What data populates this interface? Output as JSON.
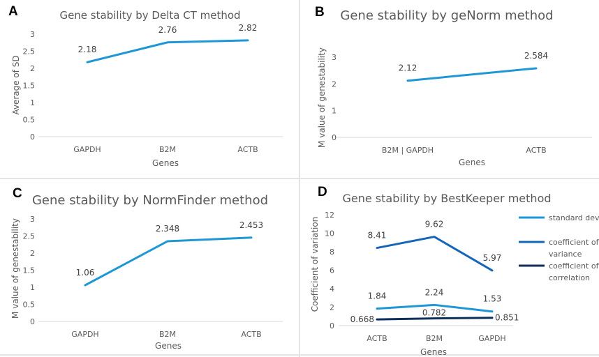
{
  "chart_data": [
    {
      "panel": "A",
      "type": "line",
      "title": "Gene stability by Delta CT method",
      "categories": [
        "GAPDH",
        "B2M",
        "ACTB"
      ],
      "series": [
        {
          "name": "Average of SD",
          "values": [
            2.18,
            2.76,
            2.82
          ],
          "labels": [
            "2.18",
            "2.76",
            "2.82"
          ],
          "color": "#1f97d4"
        }
      ],
      "xlabel": "Genes",
      "ylabel": "Average of SD",
      "ylim": [
        0,
        3
      ],
      "yticks": [
        "0",
        "0.5",
        "1",
        "1.5",
        "2",
        "2.5",
        "3"
      ],
      "ytick_values": [
        0,
        0.5,
        1,
        1.5,
        2,
        2.5,
        3
      ]
    },
    {
      "panel": "B",
      "type": "line",
      "title": "Gene stability by geNorm method",
      "categories": [
        "B2M | GAPDH",
        "ACTB"
      ],
      "series": [
        {
          "name": "M value of genestability",
          "values": [
            2.12,
            2.584
          ],
          "labels": [
            "2.12",
            "2.584"
          ],
          "color": "#1f97d4"
        }
      ],
      "xlabel": "Genes",
      "ylabel": "M value of genestability",
      "ylim": [
        0,
        3
      ],
      "yticks": [
        "0",
        "1",
        "2",
        "3"
      ],
      "ytick_values": [
        0,
        1,
        2,
        3
      ]
    },
    {
      "panel": "C",
      "type": "line",
      "title": "Gene stability by NormFinder method",
      "categories": [
        "GAPDH",
        "B2M",
        "ACTB"
      ],
      "series": [
        {
          "name": "M value of genestability",
          "values": [
            1.06,
            2.348,
            2.453
          ],
          "labels": [
            "1.06",
            "2.348",
            "2.453"
          ],
          "color": "#1f97d4"
        }
      ],
      "xlabel": "Genes",
      "ylabel": "M value of genestability",
      "ylim": [
        0,
        3
      ],
      "yticks": [
        "0",
        "0.5",
        "1",
        "1.5",
        "2",
        "2.5",
        "3"
      ],
      "ytick_values": [
        0,
        0.5,
        1,
        1.5,
        2,
        2.5,
        3
      ]
    },
    {
      "panel": "D",
      "type": "line",
      "title": "Gene stability by BestKeeper method",
      "categories": [
        "ACTB",
        "B2M",
        "GAPDH"
      ],
      "series": [
        {
          "name": "standard deviation",
          "values": [
            1.84,
            2.24,
            1.53
          ],
          "labels": [
            "1.84",
            "2.24",
            "1.53"
          ],
          "color": "#1f97d4"
        },
        {
          "name": "coefficient of variance",
          "values": [
            8.41,
            9.62,
            5.97
          ],
          "labels": [
            "8.41",
            "9.62",
            "5.97"
          ],
          "color": "#1565b8"
        },
        {
          "name": "coefficient of correlation",
          "values": [
            0.668,
            0.782,
            0.851
          ],
          "labels": [
            "0.668",
            "0.782",
            "0.851"
          ],
          "color": "#0d2f5a"
        }
      ],
      "xlabel": "Genes",
      "ylabel": "Coefficient of variation",
      "ylim": [
        0,
        12
      ],
      "yticks": [
        "0",
        "2",
        "4",
        "6",
        "8",
        "10",
        "12"
      ],
      "ytick_values": [
        0,
        2,
        4,
        6,
        8,
        10,
        12
      ],
      "legend_position": "right",
      "legend": [
        {
          "lines": [
            "standard deviation"
          ],
          "color": "#1f97d4"
        },
        {
          "lines": [
            "coefficient of",
            "variance"
          ],
          "color": "#1565b8"
        },
        {
          "lines": [
            "coefficient of",
            "correlation"
          ],
          "color": "#0d2f5a"
        }
      ]
    }
  ]
}
